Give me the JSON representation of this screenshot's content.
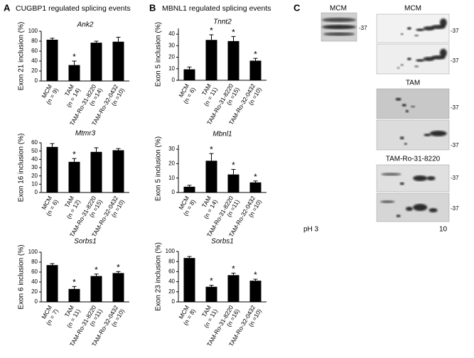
{
  "panels": [
    {
      "label": "A",
      "title": "CUGBP1 regulated splicing events"
    },
    {
      "label": "B",
      "title": "MBNL1 regulated splicing events"
    },
    {
      "label": "C"
    }
  ],
  "blots": {
    "labels": [
      "MCM",
      "MCM",
      "TAM",
      "TAM-Ro-31-8220"
    ],
    "marker": "-37",
    "ph_start": "pH 3",
    "ph_end": "10"
  },
  "chart_data": [
    {
      "type": "bar",
      "title": "Ank2",
      "ylabel": "Exon 21 inclusion (%)",
      "categories": [
        "MCM",
        "TAM",
        "TAM-Ro-31-8220",
        "TAM-Ro-32-0432"
      ],
      "sample_sizes": [
        "(n = 9)",
        "(n = 14)",
        "(n =14)",
        "(n =10)"
      ],
      "values": [
        83,
        32,
        77,
        79
      ],
      "errors": [
        3,
        8,
        3,
        9
      ],
      "significance": [
        null,
        "*",
        null,
        null
      ],
      "ylim": [
        0,
        100
      ],
      "yticks": [
        0,
        20,
        40,
        60,
        80,
        100
      ],
      "color": "#000000"
    },
    {
      "type": "bar",
      "title": "Mtmr3",
      "ylabel": "Exon 16 inclusion (%)",
      "categories": [
        "MCM",
        "TAM",
        "TAM-Ro-31-8220",
        "TAM-Ro-32-0432"
      ],
      "sample_sizes": [
        "(n = 6)",
        "(n = 12)",
        "(n =15)",
        "(n =10)"
      ],
      "values": [
        55,
        37,
        49,
        51
      ],
      "errors": [
        4,
        4,
        5,
        2
      ],
      "significance": [
        null,
        "*",
        null,
        null
      ],
      "ylim": [
        0,
        60
      ],
      "yticks": [
        0,
        10,
        20,
        30,
        40,
        50,
        60
      ],
      "color": "#000000"
    },
    {
      "type": "bar",
      "title": "Sorbs1",
      "ylabel": "Exon 6 inclusion (%)",
      "categories": [
        "MCM",
        "TAM",
        "TAM-Ro-31-8220",
        "TAM-Ro-32-0432"
      ],
      "sample_sizes": [
        "(n = 7)",
        "(n = 11)",
        "(n =11)",
        "(n =10)"
      ],
      "values": [
        74,
        26,
        52,
        58
      ],
      "errors": [
        3,
        5,
        4,
        3
      ],
      "significance": [
        null,
        "*",
        "*",
        "*"
      ],
      "ylim": [
        0,
        100
      ],
      "yticks": [
        0,
        20,
        40,
        60,
        80,
        100
      ],
      "color": "#000000"
    },
    {
      "type": "bar",
      "title": "Tnnt2",
      "ylabel": "Exon 5 inclusion (%)",
      "categories": [
        "MCM",
        "TAM",
        "TAM-Ro-31-8220",
        "TAM-Ro-32-0432"
      ],
      "sample_sizes": [
        "(n = 6)",
        "(n = 11)",
        "(n =15)",
        "(n =10)"
      ],
      "values": [
        9.5,
        35,
        34,
        17
      ],
      "errors": [
        2,
        4.5,
        4,
        2
      ],
      "significance": [
        null,
        "*",
        "*",
        "*"
      ],
      "ylim": [
        0,
        45
      ],
      "yticks": [
        0,
        10,
        20,
        30,
        40
      ],
      "color": "#000000"
    },
    {
      "type": "bar",
      "title": "Mbnl1",
      "ylabel": "Exon 5 inclusion (%)",
      "categories": [
        "MCM",
        "TAM",
        "TAM-Ro-31-8220",
        "TAM-Ro-32-0432"
      ],
      "sample_sizes": [
        "(n = 8)",
        "(n = 14)",
        "(n =11)",
        "(n =10)"
      ],
      "values": [
        4,
        22,
        12.5,
        7
      ],
      "errors": [
        1,
        5,
        3.5,
        1
      ],
      "significance": [
        null,
        "*",
        "*",
        "*"
      ],
      "ylim": [
        0,
        33
      ],
      "yticks": [
        0,
        10,
        20,
        30
      ],
      "color": "#000000"
    },
    {
      "type": "bar",
      "title": "Sorbs1",
      "ylabel": "Exon 23 inclusion (%)",
      "categories": [
        "MCM",
        "TAM",
        "TAM-Ro-31-8220",
        "TAM-Ro-32-0432"
      ],
      "sample_sizes": [
        "(n = 8)",
        "(n = 11)",
        "(n =16)",
        "(n =10)"
      ],
      "values": [
        87,
        30,
        53,
        42
      ],
      "errors": [
        3,
        3,
        4,
        3
      ],
      "significance": [
        null,
        "*",
        "*",
        "*"
      ],
      "ylim": [
        0,
        100
      ],
      "yticks": [
        0,
        20,
        40,
        60,
        80,
        100
      ],
      "color": "#000000"
    }
  ]
}
